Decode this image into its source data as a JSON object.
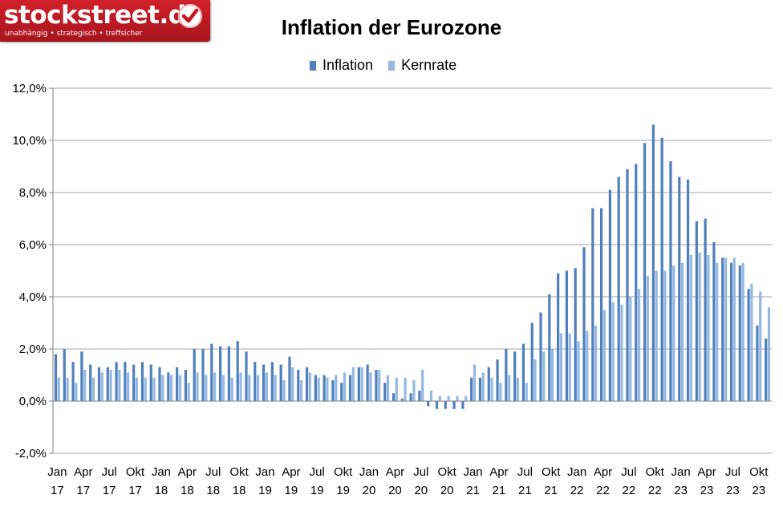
{
  "branding": {
    "logo_text": "stockstreet.de",
    "tagline": "unabhängig • strategisch • treffsicher",
    "logo_icon": "checkmark-icon"
  },
  "colors": {
    "inflation": "#4f7fbc",
    "kernrate": "#95b8e2",
    "logo_red": "#c8161e",
    "gridline": "#a6a6a6"
  },
  "chart_data": {
    "type": "bar",
    "title": "Inflation der Eurozone",
    "xlabel": "",
    "ylabel": "",
    "ylim": [
      -2,
      12
    ],
    "yticks": [
      -2,
      0,
      2,
      4,
      6,
      8,
      10,
      12
    ],
    "ytick_labels": [
      "-2,0%",
      "0,0%",
      "2,0%",
      "4,0%",
      "6,0%",
      "8,0%",
      "10,0%",
      "12,0%"
    ],
    "grid": true,
    "legend_position": "top-center",
    "categories": [
      "Jan 17",
      "Feb 17",
      "Mär 17",
      "Apr 17",
      "Mai 17",
      "Jun 17",
      "Jul 17",
      "Aug 17",
      "Sep 17",
      "Okt 17",
      "Nov 17",
      "Dez 17",
      "Jan 18",
      "Feb 18",
      "Mär 18",
      "Apr 18",
      "Mai 18",
      "Jun 18",
      "Jul 18",
      "Aug 18",
      "Sep 18",
      "Okt 18",
      "Nov 18",
      "Dez 18",
      "Jan 19",
      "Feb 19",
      "Mär 19",
      "Apr 19",
      "Mai 19",
      "Jun 19",
      "Jul 19",
      "Aug 19",
      "Sep 19",
      "Okt 19",
      "Nov 19",
      "Dez 19",
      "Jan 20",
      "Feb 20",
      "Mär 20",
      "Apr 20",
      "Mai 20",
      "Jun 20",
      "Jul 20",
      "Aug 20",
      "Sep 20",
      "Okt 20",
      "Nov 20",
      "Dez 20",
      "Jan 21",
      "Feb 21",
      "Mär 21",
      "Apr 21",
      "Mai 21",
      "Jun 21",
      "Jul 21",
      "Aug 21",
      "Sep 21",
      "Okt 21",
      "Nov 21",
      "Dez 21",
      "Jan 22",
      "Feb 22",
      "Mär 22",
      "Apr 22",
      "Mai 22",
      "Jun 22",
      "Jul 22",
      "Aug 22",
      "Sep 22",
      "Okt 22",
      "Nov 22",
      "Dez 22",
      "Jan 23",
      "Feb 23",
      "Mär 23",
      "Apr 23",
      "Mai 23",
      "Jun 23",
      "Jul 23",
      "Aug 23",
      "Sep 23",
      "Okt 23",
      "Nov 23"
    ],
    "x_tick_labels": [
      {
        "index": 0,
        "month": "Jan",
        "year": "17"
      },
      {
        "index": 3,
        "month": "Apr",
        "year": "17"
      },
      {
        "index": 6,
        "month": "Jul",
        "year": "17"
      },
      {
        "index": 9,
        "month": "Okt",
        "year": "17"
      },
      {
        "index": 12,
        "month": "Jan",
        "year": "18"
      },
      {
        "index": 15,
        "month": "Apr",
        "year": "18"
      },
      {
        "index": 18,
        "month": "Jul",
        "year": "18"
      },
      {
        "index": 21,
        "month": "Okt",
        "year": "18"
      },
      {
        "index": 24,
        "month": "Jan",
        "year": "19"
      },
      {
        "index": 27,
        "month": "Apr",
        "year": "19"
      },
      {
        "index": 30,
        "month": "Jul",
        "year": "19"
      },
      {
        "index": 33,
        "month": "Okt",
        "year": "19"
      },
      {
        "index": 36,
        "month": "Jan",
        "year": "20"
      },
      {
        "index": 39,
        "month": "Apr",
        "year": "20"
      },
      {
        "index": 42,
        "month": "Jul",
        "year": "20"
      },
      {
        "index": 45,
        "month": "Okt",
        "year": "20"
      },
      {
        "index": 48,
        "month": "Jan",
        "year": "21"
      },
      {
        "index": 51,
        "month": "Apr",
        "year": "21"
      },
      {
        "index": 54,
        "month": "Jul",
        "year": "21"
      },
      {
        "index": 57,
        "month": "Okt",
        "year": "21"
      },
      {
        "index": 60,
        "month": "Jan",
        "year": "22"
      },
      {
        "index": 63,
        "month": "Apr",
        "year": "22"
      },
      {
        "index": 66,
        "month": "Jul",
        "year": "22"
      },
      {
        "index": 69,
        "month": "Okt",
        "year": "22"
      },
      {
        "index": 72,
        "month": "Jan",
        "year": "23"
      },
      {
        "index": 75,
        "month": "Apr",
        "year": "23"
      },
      {
        "index": 78,
        "month": "Jul",
        "year": "23"
      },
      {
        "index": 81,
        "month": "Okt",
        "year": "23"
      }
    ],
    "series": [
      {
        "name": "Inflation",
        "color": "#4f7fbc",
        "values": [
          1.8,
          2.0,
          1.5,
          1.9,
          1.4,
          1.3,
          1.3,
          1.5,
          1.5,
          1.4,
          1.5,
          1.4,
          1.3,
          1.1,
          1.3,
          1.2,
          2.0,
          2.0,
          2.2,
          2.1,
          2.1,
          2.3,
          1.9,
          1.5,
          1.4,
          1.5,
          1.4,
          1.7,
          1.2,
          1.3,
          1.0,
          1.0,
          0.8,
          0.7,
          1.0,
          1.3,
          1.4,
          1.2,
          0.7,
          0.3,
          0.1,
          0.3,
          0.4,
          -0.2,
          -0.3,
          -0.3,
          -0.3,
          -0.3,
          0.9,
          0.9,
          1.3,
          1.6,
          2.0,
          1.9,
          2.2,
          3.0,
          3.4,
          4.1,
          4.9,
          5.0,
          5.1,
          5.9,
          7.4,
          7.4,
          8.1,
          8.6,
          8.9,
          9.1,
          9.9,
          10.6,
          10.1,
          9.2,
          8.6,
          8.5,
          6.9,
          7.0,
          6.1,
          5.5,
          5.3,
          5.2,
          4.3,
          2.9,
          2.4
        ]
      },
      {
        "name": "Kernrate",
        "color": "#95b8e2",
        "values": [
          0.9,
          0.9,
          0.7,
          1.2,
          0.9,
          1.1,
          1.2,
          1.2,
          1.1,
          0.9,
          0.9,
          0.9,
          1.0,
          1.0,
          1.0,
          0.7,
          1.1,
          1.0,
          1.1,
          1.0,
          0.9,
          1.1,
          1.0,
          1.0,
          1.1,
          1.0,
          0.8,
          1.3,
          0.8,
          1.1,
          0.9,
          0.9,
          1.0,
          1.1,
          1.3,
          1.3,
          1.1,
          1.2,
          1.0,
          0.9,
          0.9,
          0.8,
          1.2,
          0.4,
          0.2,
          0.2,
          0.2,
          0.2,
          1.4,
          1.1,
          0.9,
          0.7,
          1.0,
          0.9,
          0.7,
          1.6,
          1.9,
          2.0,
          2.6,
          2.6,
          2.3,
          2.7,
          2.9,
          3.5,
          3.8,
          3.7,
          4.0,
          4.3,
          4.8,
          5.0,
          5.0,
          5.2,
          5.3,
          5.6,
          5.7,
          5.6,
          5.3,
          5.5,
          5.5,
          5.3,
          4.5,
          4.2,
          3.6
        ]
      }
    ]
  }
}
